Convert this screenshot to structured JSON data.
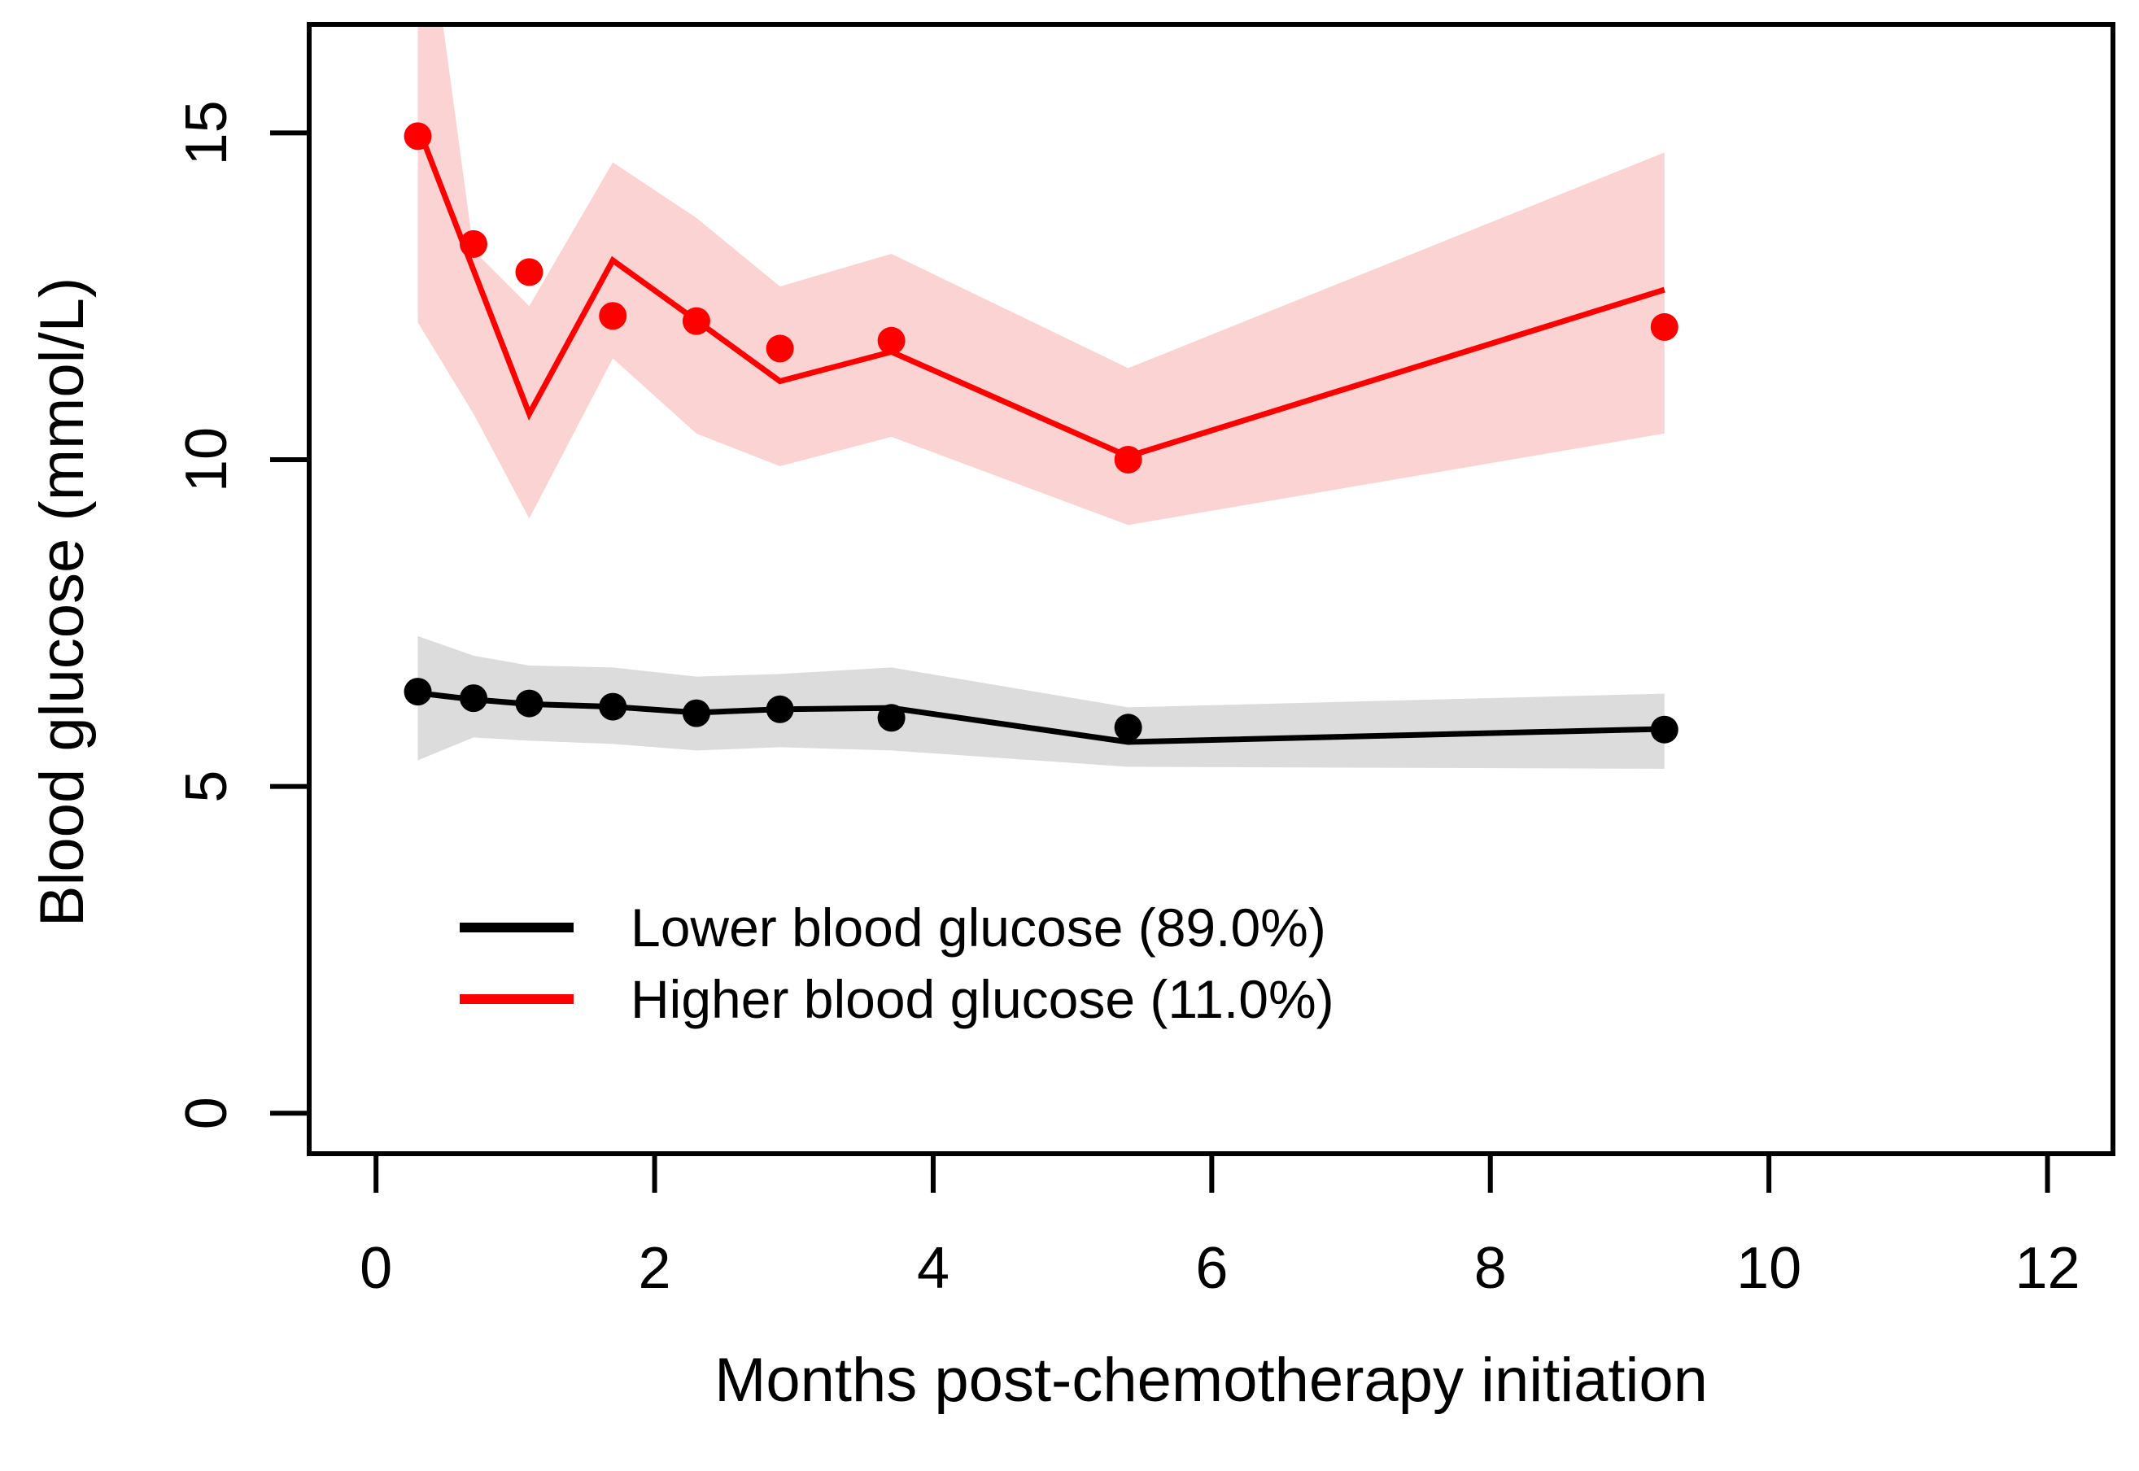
{
  "figure": {
    "background": "#FFFFFF",
    "axis_color": "#000000",
    "xlabel": "Months post-chemotherapy initiation",
    "ylabel": "Blood glucose (mmol/L)"
  },
  "legend": {
    "position": "inside-bottom-left",
    "entries": [
      {
        "label": "Lower blood glucose (89.0%)",
        "color": "#000000",
        "swatch": "line"
      },
      {
        "label": "Higher blood glucose (11.0%)",
        "color": "#FF0000",
        "swatch": "line"
      }
    ]
  },
  "chart_data": {
    "type": "line",
    "title": "",
    "xlabel": "Months post-chemotherapy initiation",
    "ylabel": "Blood glucose (mmol/L)",
    "grid": false,
    "xlim": [
      -0.48,
      12.47
    ],
    "ylim": [
      -0.62,
      16.66
    ],
    "xticks": [
      0,
      2,
      4,
      6,
      8,
      10,
      12
    ],
    "yticks": [
      0,
      5,
      10,
      15
    ],
    "x": [
      0.3,
      0.7,
      1.1,
      1.7,
      2.3,
      2.9,
      3.7,
      5.4,
      9.25
    ],
    "series": [
      {
        "name": "Lower blood glucose (89.0%)",
        "class_share_pct": 89.0,
        "color": "#000000",
        "band_color": "#DCDCDC",
        "points": [
          6.45,
          6.35,
          6.27,
          6.22,
          6.12,
          6.18,
          6.05,
          5.9,
          5.87
        ],
        "line": [
          6.43,
          6.33,
          6.26,
          6.22,
          6.13,
          6.18,
          6.2,
          5.68,
          5.88
        ],
        "band_lower": [
          5.4,
          5.75,
          5.7,
          5.65,
          5.55,
          5.6,
          5.55,
          5.3,
          5.27
        ],
        "band_upper": [
          7.3,
          7.0,
          6.85,
          6.82,
          6.68,
          6.72,
          6.82,
          6.21,
          6.42
        ]
      },
      {
        "name": "Higher blood glucose (11.0%)",
        "class_share_pct": 11.0,
        "color": "#FF0000",
        "band_color": "#FCD3D3",
        "points": [
          14.95,
          13.3,
          12.87,
          12.2,
          12.12,
          11.7,
          11.82,
          10.0,
          12.03
        ],
        "line": [
          15.1,
          12.9,
          10.7,
          13.05,
          12.13,
          11.2,
          11.65,
          10.05,
          12.6
        ],
        "band_lower": [
          12.1,
          10.7,
          9.1,
          11.55,
          10.4,
          9.9,
          10.35,
          9.0,
          10.4
        ],
        "band_upper": [
          19.5,
          13.2,
          12.35,
          14.55,
          13.7,
          12.65,
          13.15,
          11.4,
          14.7
        ]
      }
    ]
  }
}
